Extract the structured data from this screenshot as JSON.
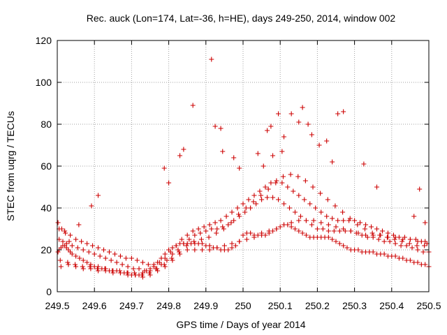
{
  "chart_data": {
    "type": "scatter",
    "title": "Rec. auck (Lon=174, Lat=-36, h=HE), days 249-250, 2014, window 002",
    "xlabel": "GPS time / Days of year 2014",
    "ylabel": "STEC from uqrg / TECUs",
    "xlim": [
      249.5,
      250.5
    ],
    "ylim": [
      0,
      120
    ],
    "x_ticks": [
      249.5,
      249.6,
      249.7,
      249.8,
      249.9,
      250,
      250.1,
      250.2,
      250.3,
      250.4,
      250.5
    ],
    "x_tick_labels": [
      "249.5",
      "249.6",
      "249.7",
      "249.8",
      "249.9",
      "250",
      "250.1",
      "250.2",
      "250.3",
      "250.4",
      "250.5"
    ],
    "y_ticks": [
      0,
      20,
      40,
      60,
      80,
      100,
      120
    ],
    "y_tick_labels": [
      "0",
      "20",
      "40",
      "60",
      "80",
      "100",
      "120"
    ],
    "grid": true,
    "legend": "none",
    "marker": "plus",
    "color": "#cc0000",
    "series": [
      {
        "x": [
          249.502,
          249.505,
          249.51,
          249.515,
          249.52,
          249.525,
          249.53,
          249.535,
          249.54,
          249.55,
          249.56,
          249.57,
          249.58,
          249.59,
          249.6,
          249.61,
          249.62,
          249.63,
          249.64,
          249.65,
          249.66,
          249.67,
          249.68,
          249.69,
          249.7,
          249.71,
          249.72,
          249.73,
          249.74,
          249.75,
          249.76,
          249.77,
          249.78,
          249.79,
          249.8,
          249.81,
          249.82,
          249.83,
          249.84,
          249.85,
          249.86,
          249.87,
          249.88,
          249.89,
          249.9,
          249.91,
          249.92,
          249.93,
          249.94,
          249.95,
          249.96,
          249.97,
          249.98,
          249.99,
          250.0,
          250.01,
          250.02,
          250.03,
          250.04,
          250.05,
          250.06,
          250.07,
          250.08,
          250.09,
          250.1,
          250.11,
          250.12,
          250.13,
          250.14,
          250.15,
          250.16,
          250.17,
          250.18,
          250.19,
          250.2,
          250.21,
          250.22,
          250.23,
          250.24,
          250.25,
          250.26,
          250.27,
          250.28,
          250.29,
          250.3,
          250.31,
          250.32,
          250.33,
          250.34,
          250.35,
          250.36,
          250.37,
          250.38,
          250.39,
          250.4,
          250.41,
          250.42,
          250.43,
          250.44,
          250.45,
          250.46,
          250.47,
          250.48,
          250.49,
          250.5,
          249.505,
          249.515,
          249.525,
          249.54,
          249.555,
          249.57,
          249.585,
          249.6,
          249.615,
          249.63,
          249.645,
          249.66,
          249.675,
          249.69,
          249.705,
          249.72,
          249.735,
          249.75,
          249.765,
          249.78,
          249.795,
          249.81,
          249.825,
          249.84,
          249.855,
          249.87,
          249.885,
          249.9,
          249.915,
          249.93,
          249.945,
          249.96,
          249.975,
          249.99,
          250.005,
          250.02,
          250.035,
          250.05,
          250.065,
          250.08,
          250.095,
          250.11,
          250.125,
          250.14,
          250.155,
          250.17,
          250.185,
          250.2,
          250.215,
          250.23,
          250.245,
          250.26,
          250.275,
          250.29,
          250.305,
          250.32,
          250.335,
          250.35,
          250.365,
          250.38,
          250.395,
          250.41,
          250.425,
          250.44,
          250.455,
          250.47,
          250.485,
          250.5,
          249.505,
          249.52,
          249.535,
          249.55,
          249.565,
          249.58,
          249.595,
          249.61,
          249.625,
          249.64,
          249.655,
          249.67,
          249.685,
          249.7,
          249.715,
          249.73,
          249.745,
          249.76,
          249.775,
          249.79,
          249.805,
          249.82,
          249.835,
          249.85,
          249.865,
          249.88,
          249.895,
          249.91,
          249.925,
          249.94,
          249.955,
          249.97,
          249.985,
          250.0,
          250.015,
          250.03,
          250.045,
          250.06,
          250.075,
          250.09,
          250.105,
          250.12,
          250.135,
          250.15,
          250.165,
          250.18,
          250.195,
          250.21,
          250.225,
          250.24,
          250.255,
          250.27,
          250.285,
          250.3,
          250.315,
          250.33,
          250.345,
          250.36,
          250.375,
          250.39,
          250.405,
          250.42,
          250.435,
          250.45,
          250.465,
          250.48,
          250.495,
          249.51,
          249.53,
          249.55,
          249.57,
          249.59,
          249.61,
          249.63,
          249.65,
          249.67,
          249.69,
          249.71,
          249.73,
          249.75,
          249.77,
          249.79,
          249.81,
          249.83,
          249.85,
          249.87,
          249.89,
          249.91,
          249.93,
          249.95,
          249.97,
          249.99,
          250.01,
          250.03,
          250.05,
          250.07,
          250.09,
          250.11,
          250.13,
          250.15,
          250.17,
          250.19,
          250.21,
          250.23,
          250.25,
          250.27,
          250.29,
          250.31,
          250.33,
          250.35,
          250.37,
          250.39,
          250.41,
          250.43,
          250.45,
          250.47,
          250.49,
          249.508,
          249.528,
          249.548,
          249.568,
          249.588,
          249.608,
          249.628,
          249.648,
          249.668,
          249.688,
          249.708,
          249.728,
          249.748,
          249.768,
          249.788,
          249.808,
          249.828,
          249.848,
          249.868,
          249.888,
          249.908,
          249.928,
          249.948,
          249.968,
          249.988,
          250.008,
          250.028,
          250.048,
          250.068,
          250.088,
          250.108,
          250.128,
          250.148,
          250.168,
          250.188,
          250.208,
          250.228,
          250.248,
          250.268,
          250.288,
          250.308,
          250.328,
          250.348,
          250.368,
          250.388,
          250.408,
          250.428,
          250.448,
          250.468,
          250.488,
          249.502,
          249.512,
          249.522,
          249.532,
          249.558,
          249.592,
          249.61,
          249.788,
          249.8,
          249.83,
          249.84,
          249.865,
          249.915,
          249.925,
          249.94,
          249.945,
          249.975,
          249.99,
          250.04,
          250.055,
          250.065,
          250.075,
          250.08,
          250.095,
          250.105,
          250.11,
          250.13,
          250.15,
          250.16,
          250.175,
          250.185,
          250.205,
          250.225,
          250.24,
          250.255,
          250.27,
          250.325,
          250.36,
          250.46,
          250.475,
          250.49
        ],
        "y": [
          19,
          20,
          21,
          22,
          22,
          21,
          20,
          19,
          18,
          17,
          16,
          15,
          14,
          13,
          12,
          12,
          11,
          11,
          10,
          10,
          10,
          9,
          9,
          9,
          8,
          8,
          8,
          9,
          10,
          11,
          12,
          14,
          16,
          18,
          20,
          21,
          22,
          23,
          23,
          23,
          23,
          23,
          23,
          23,
          22,
          22,
          21,
          21,
          20,
          20,
          20,
          21,
          22,
          24,
          27,
          28,
          28,
          27,
          27,
          27,
          27,
          28,
          29,
          30,
          31,
          32,
          32,
          31,
          30,
          29,
          28,
          27,
          26,
          26,
          26,
          26,
          26,
          26,
          25,
          24,
          23,
          22,
          21,
          20,
          20,
          20,
          19,
          19,
          19,
          19,
          18,
          18,
          18,
          17,
          17,
          17,
          16,
          16,
          15,
          15,
          14,
          14,
          13,
          13,
          12,
          25,
          24,
          23,
          22,
          21,
          20,
          19,
          18,
          17,
          16,
          15,
          14,
          13,
          12,
          11,
          11,
          10,
          10,
          11,
          13,
          15,
          18,
          20,
          23,
          25,
          27,
          28,
          29,
          30,
          30,
          31,
          32,
          34,
          36,
          38,
          40,
          42,
          44,
          45,
          45,
          44,
          42,
          40,
          38,
          36,
          34,
          32,
          30,
          30,
          29,
          29,
          29,
          29,
          29,
          28,
          27,
          26,
          26,
          25,
          24,
          24,
          23,
          22,
          22,
          21,
          20,
          19,
          19,
          30,
          29,
          27,
          25,
          24,
          23,
          22,
          21,
          20,
          19,
          18,
          17,
          16,
          16,
          15,
          14,
          13,
          13,
          14,
          16,
          19,
          22,
          25,
          27,
          29,
          30,
          31,
          32,
          33,
          34,
          36,
          38,
          40,
          42,
          44,
          46,
          48,
          50,
          52,
          53,
          52,
          50,
          48,
          46,
          44,
          42,
          40,
          38,
          36,
          35,
          34,
          34,
          34,
          34,
          33,
          32,
          31,
          30,
          29,
          28,
          27,
          26,
          26,
          25,
          25,
          24,
          23,
          12,
          13,
          12,
          11,
          11,
          10,
          10,
          9,
          9,
          8,
          8,
          7,
          8,
          10,
          12,
          15,
          18,
          20,
          20,
          20,
          20,
          21,
          22,
          23,
          24,
          25,
          26,
          28,
          29,
          30,
          32,
          33,
          34,
          34,
          34,
          33,
          32,
          31,
          30,
          29,
          28,
          27,
          27,
          27,
          26,
          26,
          25,
          25,
          24,
          24,
          15,
          14,
          13,
          12,
          12,
          11,
          11,
          10,
          10,
          9,
          9,
          8,
          9,
          11,
          13,
          16,
          19,
          22,
          24,
          25,
          26,
          28,
          30,
          33,
          37,
          40,
          43,
          46,
          49,
          52,
          55,
          56,
          55,
          53,
          50,
          47,
          44,
          41,
          38,
          35,
          32,
          30,
          28,
          27,
          26,
          25,
          24,
          23,
          22,
          22,
          33,
          30,
          28,
          24,
          32,
          41,
          46,
          59,
          52,
          65,
          68,
          89,
          111,
          79,
          78,
          67,
          64,
          59,
          66,
          60,
          77,
          79,
          65,
          85,
          67,
          74,
          85,
          81,
          88,
          80,
          75,
          70,
          72,
          62,
          85,
          86,
          61,
          50,
          36,
          49,
          33
        ]
      }
    ]
  }
}
